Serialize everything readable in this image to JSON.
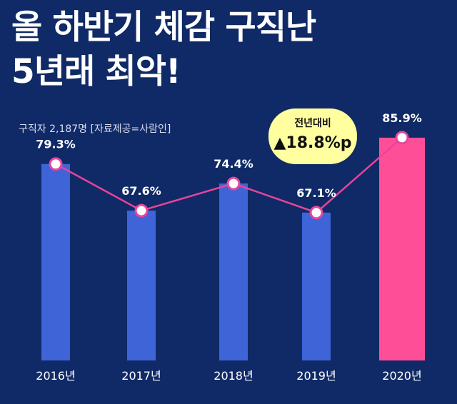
{
  "header": {
    "title_line1": "올 하반기 체감 구직난",
    "title_line2": "5년래 최악!",
    "subtitle": "구직자 2,187명 [자료제공=사람인]"
  },
  "callout": {
    "label": "전년대비",
    "value": "▲18.8%p"
  },
  "colors": {
    "background": "#0f2a66",
    "bar_default": "#3f64d8",
    "bar_highlight": "#ff4e98",
    "line": "#e8449a",
    "callout_bg": "#ffffa0"
  },
  "chart_data": {
    "type": "bar",
    "categories": [
      "2016년",
      "2017년",
      "2018년",
      "2019년",
      "2020년"
    ],
    "values": [
      79.3,
      67.6,
      74.4,
      67.1,
      85.9
    ],
    "value_labels": [
      "79.3%",
      "67.6%",
      "74.4%",
      "67.1%",
      "85.9%"
    ],
    "highlight_index": 4,
    "line_overlay": true,
    "ylim": [
      30,
      90
    ],
    "grid": false,
    "title": "올 하반기 체감 구직난 5년래 최악!",
    "xlabel": "",
    "ylabel": ""
  }
}
